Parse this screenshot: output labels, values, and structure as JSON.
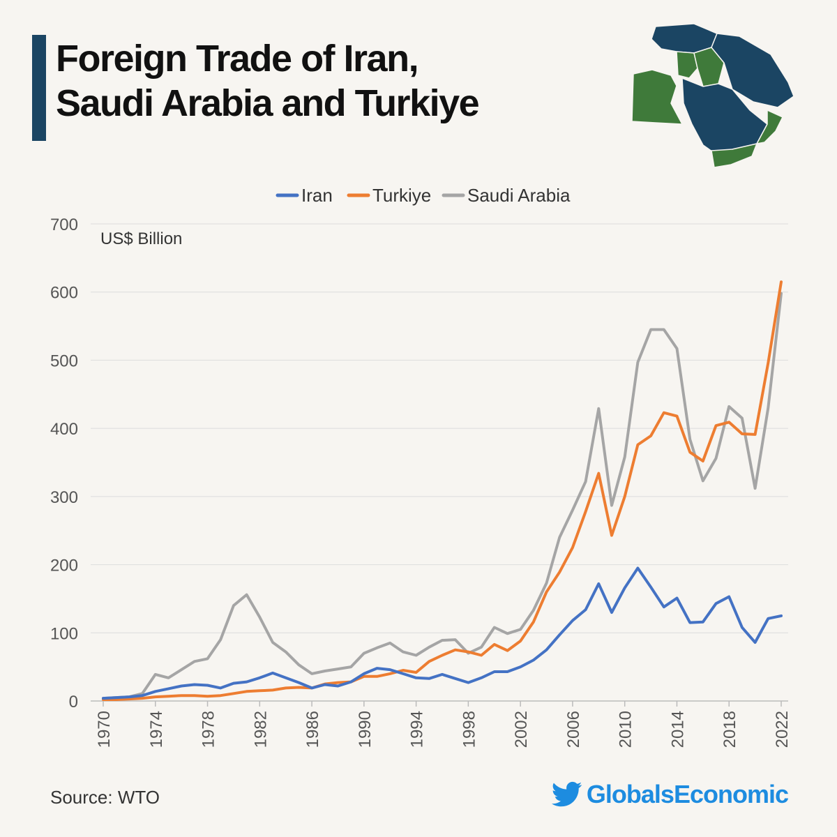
{
  "title": {
    "line1": "Foreign Trade of Iran,",
    "line2": "Saudi Arabia and Turkiye"
  },
  "source": "Source: WTO",
  "brand": "GlobalsEconomic",
  "colors": {
    "accent": "#1b4563",
    "brand": "#1d8ce0",
    "map_blue": "#1b4563",
    "map_green": "#3f7a3a"
  },
  "icons": {
    "brand": "twitter-bird-icon",
    "map": "middle-east-map-icon"
  },
  "chart_data": {
    "type": "line",
    "unit_label": "US$ Billion",
    "x_tick_labels": [
      "1970",
      "1974",
      "1978",
      "1982",
      "1986",
      "1990",
      "1994",
      "1998",
      "2002",
      "2006",
      "2010",
      "2014",
      "2018",
      "2022"
    ],
    "y_ticks": [
      "0",
      "100",
      "200",
      "300",
      "400",
      "500",
      "600",
      "700"
    ],
    "ylim": [
      0,
      700
    ],
    "xlim": [
      1970,
      2022
    ],
    "grid": true,
    "legend_position": "top",
    "x": [
      1970,
      1971,
      1972,
      1973,
      1974,
      1975,
      1976,
      1977,
      1978,
      1979,
      1980,
      1981,
      1982,
      1983,
      1984,
      1985,
      1986,
      1987,
      1988,
      1989,
      1990,
      1991,
      1992,
      1993,
      1994,
      1995,
      1996,
      1997,
      1998,
      1999,
      2000,
      2001,
      2002,
      2003,
      2004,
      2005,
      2006,
      2007,
      2008,
      2009,
      2010,
      2011,
      2012,
      2013,
      2014,
      2015,
      2016,
      2017,
      2018,
      2019,
      2020,
      2021,
      2022
    ],
    "series": [
      {
        "name": "Iran",
        "color": "#4472c4",
        "values": [
          4,
          5,
          6,
          8,
          14,
          18,
          22,
          24,
          23,
          19,
          26,
          28,
          34,
          41,
          34,
          27,
          19,
          24,
          22,
          28,
          40,
          48,
          46,
          40,
          34,
          33,
          39,
          33,
          27,
          34,
          43,
          43,
          50,
          60,
          75,
          97,
          118,
          134,
          172,
          130,
          166,
          195,
          167,
          138,
          151,
          115,
          116,
          143,
          153,
          108,
          86,
          121,
          125
        ]
      },
      {
        "name": "Turkiye",
        "color": "#ed7d31",
        "values": [
          2,
          2,
          3,
          4,
          6,
          7,
          8,
          8,
          7,
          8,
          11,
          14,
          15,
          16,
          19,
          20,
          19,
          25,
          27,
          28,
          36,
          36,
          40,
          45,
          42,
          58,
          67,
          75,
          72,
          67,
          83,
          74,
          88,
          116,
          160,
          189,
          225,
          278,
          334,
          243,
          300,
          376,
          389,
          423,
          418,
          365,
          352,
          404,
          409,
          392,
          391,
          496,
          615
        ]
      },
      {
        "name": "Saudi Arabia",
        "color": "#a5a5a5",
        "values": [
          4,
          5,
          6,
          11,
          39,
          34,
          46,
          58,
          62,
          90,
          140,
          156,
          123,
          86,
          72,
          53,
          40,
          44,
          47,
          50,
          70,
          78,
          85,
          72,
          67,
          79,
          89,
          90,
          70,
          79,
          108,
          99,
          105,
          133,
          173,
          240,
          280,
          322,
          429,
          287,
          358,
          497,
          545,
          545,
          517,
          384,
          323,
          356,
          432,
          415,
          312,
          430,
          598
        ]
      }
    ]
  }
}
